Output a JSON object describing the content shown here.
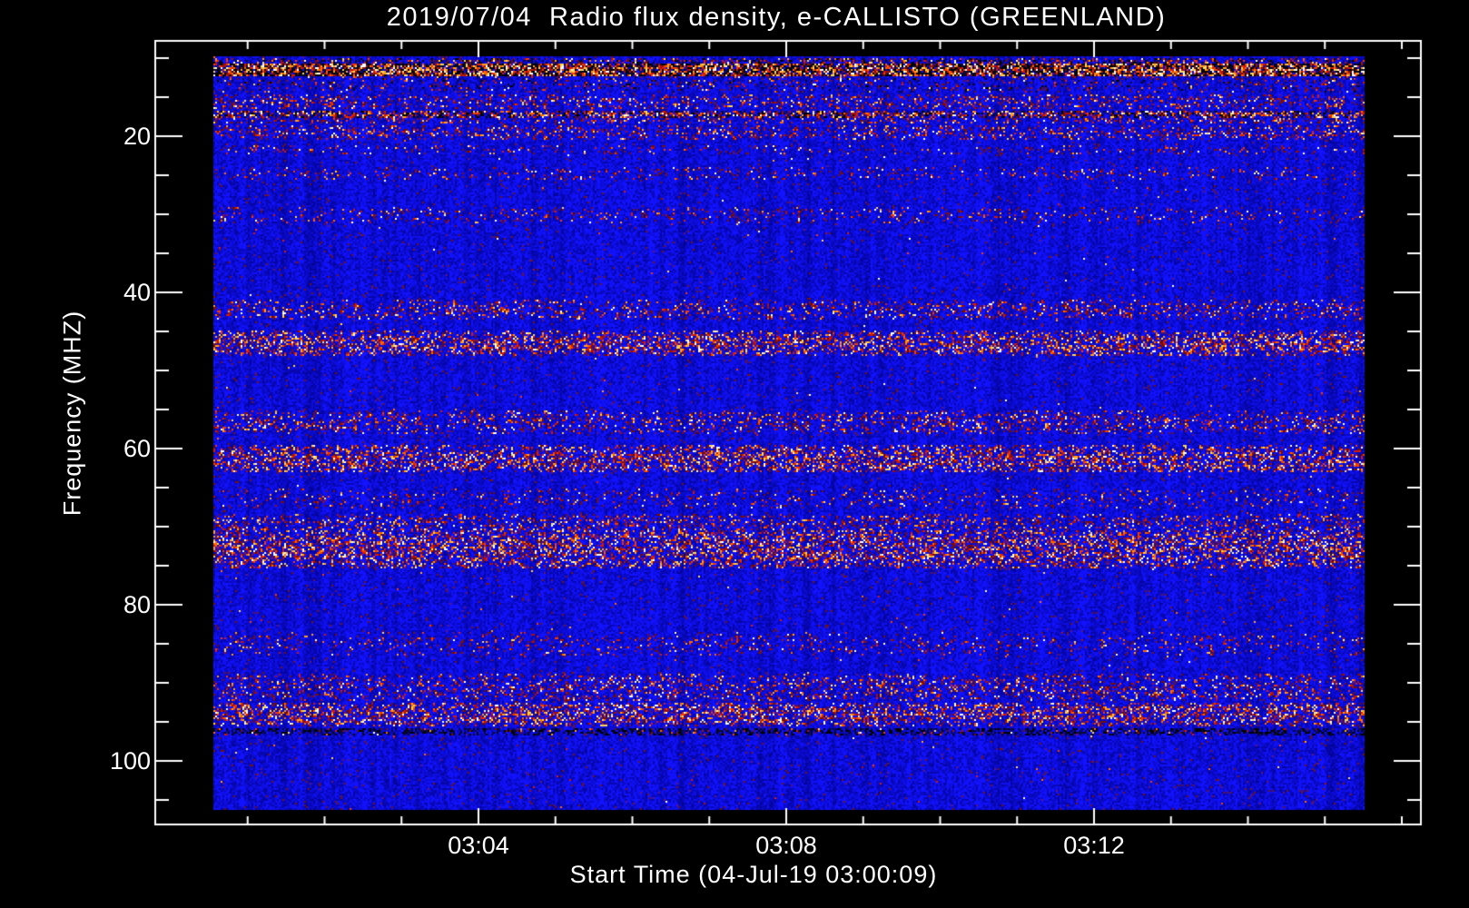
{
  "title": "2019/07/04  Radio flux density, e-CALLISTO (GREENLAND)",
  "chart_data": {
    "type": "heatmap",
    "subtype": "radio-spectrogram",
    "title": "2019/07/04  Radio flux density, e-CALLISTO (GREENLAND)",
    "xlabel": "Start Time (04-Jul-19 03:00:09)",
    "ylabel": "Frequency (MHZ)",
    "instrument": "e-CALLISTO (GREENLAND)",
    "date": "2019/07/04",
    "x_axis": {
      "start_time": "03:00:09",
      "end_time_approx": "03:15:30",
      "tick_labels": [
        "03:04",
        "03:08",
        "03:12"
      ],
      "tick_times_s": [
        240,
        480,
        720
      ],
      "minor_tick_every_s": 60,
      "minor_first_s": 60,
      "minor_last_s": 960
    },
    "y_axis": {
      "tick_labels": [
        "20",
        "40",
        "60",
        "80",
        "100"
      ],
      "tick_values_mhz": [
        20,
        40,
        60,
        80,
        100
      ],
      "minor_tick_every_mhz": 5,
      "minor_first_mhz": 10,
      "minor_last_mhz": 105,
      "data_range_mhz": [
        9.8,
        106.0
      ],
      "direction": "increasing-downward"
    },
    "grid": false,
    "legend": false,
    "colormap": {
      "page_background": "#000000",
      "axis_color": "#ffffff",
      "text_color": "#ffffff",
      "base_blue_low": "#10107a",
      "base_blue_high": "#3434ff",
      "hot_ramp": [
        "#700e0e",
        "#a31111",
        "#d41c0d",
        "#f03c0a",
        "#ff6a00",
        "#ffa126",
        "#ffd95e",
        "#ffffff"
      ],
      "dark_cell": [
        "#000005",
        "#0a0a32"
      ],
      "faint_speckle": [
        "#6e1414",
        "#5f1570"
      ]
    },
    "noise_background": {
      "faint_speckle_p": 0.022,
      "bright_speckle_p": 0.003
    },
    "intensity_levels": {
      "light": {
        "p": 0.11,
        "hot_bias": 0.2
      },
      "medium": {
        "p": 0.23,
        "hot_bias": 0.35
      },
      "strong": {
        "p": 0.42,
        "hot_bias": 0.55
      },
      "hot": {
        "p": 0.52,
        "hot_bias": 0.7
      },
      "dark": {
        "p": 0.06,
        "hot_bias": 0.2
      }
    },
    "rfi_bands": [
      {
        "f_low": 9.9,
        "f_high": 10.6,
        "level": "medium",
        "dark_p": 0.18
      },
      {
        "f_low": 10.6,
        "f_high": 12.2,
        "level": "hot",
        "dark_p": 0.38
      },
      {
        "f_low": 12.2,
        "f_high": 14.2,
        "level": "light",
        "dark_p": 0.05
      },
      {
        "f_low": 14.5,
        "f_high": 16.5,
        "level": "medium",
        "dark_p": 0.0
      },
      {
        "f_low": 16.6,
        "f_high": 17.6,
        "level": "strong",
        "dark_p": 0.22
      },
      {
        "f_low": 17.6,
        "f_high": 18.3,
        "level": "medium",
        "dark_p": 0.0
      },
      {
        "f_low": 18.5,
        "f_high": 20.3,
        "level": "medium",
        "dark_p": 0.0
      },
      {
        "f_low": 21.0,
        "f_high": 22.2,
        "level": "light",
        "dark_p": 0.0
      },
      {
        "f_low": 23.8,
        "f_high": 25.5,
        "level": "light",
        "dark_p": 0.0
      },
      {
        "f_low": 29.0,
        "f_high": 31.0,
        "level": "light",
        "dark_p": 0.0
      },
      {
        "f_low": 40.9,
        "f_high": 43.3,
        "level": "medium",
        "dark_p": 0.0
      },
      {
        "f_low": 44.8,
        "f_high": 48.0,
        "level": "strong",
        "dark_p": 0.0
      },
      {
        "f_low": 55.0,
        "f_high": 58.0,
        "level": "medium",
        "dark_p": 0.0
      },
      {
        "f_low": 59.5,
        "f_high": 63.0,
        "level": "strong",
        "dark_p": 0.0
      },
      {
        "f_low": 65.0,
        "f_high": 67.5,
        "level": "light",
        "dark_p": 0.0
      },
      {
        "f_low": 68.3,
        "f_high": 70.2,
        "level": "medium",
        "dark_p": 0.0
      },
      {
        "f_low": 70.2,
        "f_high": 75.2,
        "level": "strong",
        "dark_p": 0.0
      },
      {
        "f_low": 83.4,
        "f_high": 86.5,
        "level": "light",
        "dark_p": 0.0
      },
      {
        "f_low": 88.8,
        "f_high": 92.3,
        "level": "medium",
        "dark_p": 0.0
      },
      {
        "f_low": 92.4,
        "f_high": 95.4,
        "level": "strong",
        "dark_p": 0.0
      },
      {
        "f_low": 95.6,
        "f_high": 96.6,
        "level": "dark",
        "dark_p": 0.45
      }
    ]
  }
}
